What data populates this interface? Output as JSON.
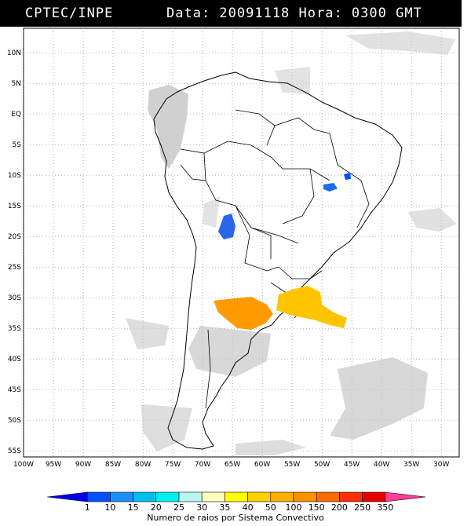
{
  "header": {
    "source": "CPTEC/INPE",
    "datetime": "Data: 20091118 Hora: 0300 GMT"
  },
  "map": {
    "extent": {
      "lon": [
        -100,
        -27
      ],
      "lat": [
        -56,
        14
      ]
    },
    "lat_labels": [
      "10N",
      "5N",
      "EQ",
      "5S",
      "10S",
      "15S",
      "20S",
      "25S",
      "30S",
      "35S",
      "40S",
      "45S",
      "50S",
      "55S"
    ],
    "lat_values": [
      10,
      5,
      0,
      -5,
      -10,
      -15,
      -20,
      -25,
      -30,
      -35,
      -40,
      -45,
      -50,
      -55
    ],
    "lon_labels": [
      "100W",
      "95W",
      "90W",
      "85W",
      "80W",
      "75W",
      "70W",
      "65W",
      "60W",
      "55W",
      "50W",
      "45W",
      "40W",
      "35W",
      "30W"
    ],
    "lon_values": [
      -100,
      -95,
      -90,
      -85,
      -80,
      -75,
      -70,
      -65,
      -60,
      -55,
      -50,
      -45,
      -40,
      -35,
      -30
    ],
    "grid": "dotted",
    "convective_systems": [
      {
        "region": "northeast-brazil-small",
        "class": "10-15",
        "color": "#0050ff"
      },
      {
        "region": "central-brazil",
        "class": "10-15",
        "color": "#1a6cf0"
      },
      {
        "region": "bolivia",
        "class": "10-15",
        "color": "#2a66ec"
      },
      {
        "region": "argentina",
        "class": "100-150",
        "color": "#ff9a00"
      },
      {
        "region": "uruguay-south-brazil",
        "class": "50-100",
        "color": "#ffc400"
      }
    ]
  },
  "legend": {
    "title": "Numero de raios por Sistema Convectivo",
    "labels": [
      "1",
      "10",
      "15",
      "20",
      "25",
      "30",
      "35",
      "40",
      "50",
      "100",
      "150",
      "200",
      "250",
      "350"
    ],
    "colors": [
      "#0000ee",
      "#0050ff",
      "#1a90ff",
      "#00c0f0",
      "#00f0f0",
      "#b8f8f0",
      "#fffcc0",
      "#ffff00",
      "#ffd000",
      "#ffb000",
      "#ff9000",
      "#ff6a00",
      "#ff3000",
      "#e80000",
      "#ff3d9a"
    ]
  }
}
